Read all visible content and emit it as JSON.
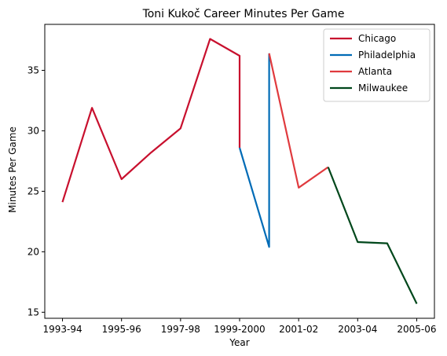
{
  "chart_data": {
    "type": "line",
    "title": "Toni Kukoč Career Minutes Per Game",
    "xlabel": "Year",
    "ylabel": "Minutes Per Game",
    "x_ticks": [
      "1993-94",
      "1995-96",
      "1997-98",
      "1999-2000",
      "2001-02",
      "2003-04",
      "2005-06"
    ],
    "y_ticks": [
      15,
      20,
      25,
      30,
      35
    ],
    "ylim": [
      14.5,
      38.8
    ],
    "grid": false,
    "legend_position": "top-right",
    "series": [
      {
        "name": "Chicago",
        "color": "#c8102e",
        "points": [
          {
            "x": "1993-94",
            "y": 24.1
          },
          {
            "x": "1994-95",
            "y": 31.9
          },
          {
            "x": "1995-96",
            "y": 26.0
          },
          {
            "x": "1996-97",
            "y": 28.2
          },
          {
            "x": "1997-98",
            "y": 30.2
          },
          {
            "x": "1998-99",
            "y": 37.6
          },
          {
            "x": "1999-2000",
            "y": 36.2
          },
          {
            "x": "1999-2000",
            "y": 28.6
          }
        ]
      },
      {
        "name": "Philadelphia",
        "color": "#006bb6",
        "points": [
          {
            "x": "1999-2000",
            "y": 28.6
          },
          {
            "x": "2000-01",
            "y": 20.4
          },
          {
            "x": "2000-01",
            "y": 36.4
          }
        ]
      },
      {
        "name": "Atlanta",
        "color": "#e03a3e",
        "points": [
          {
            "x": "2000-01",
            "y": 36.4
          },
          {
            "x": "2001-02",
            "y": 25.3
          },
          {
            "x": "2002-03",
            "y": 27.0
          }
        ]
      },
      {
        "name": "Milwaukee",
        "color": "#00471b",
        "points": [
          {
            "x": "2002-03",
            "y": 27.0
          },
          {
            "x": "2003-04",
            "y": 20.8
          },
          {
            "x": "2004-05",
            "y": 20.7
          },
          {
            "x": "2005-06",
            "y": 15.7
          }
        ]
      }
    ]
  }
}
